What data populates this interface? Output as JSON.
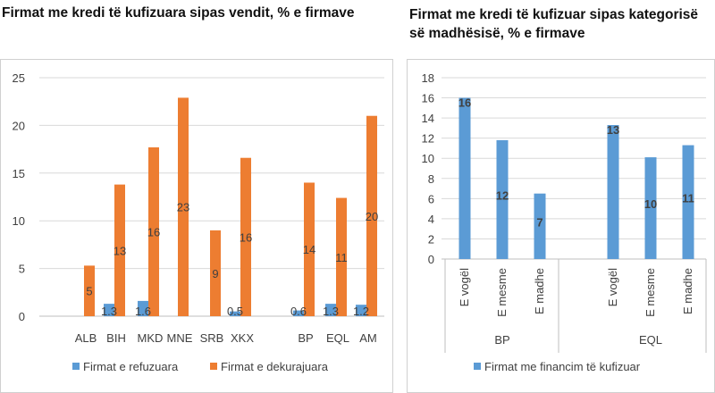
{
  "left_title": "Firmat me kredi të kufizuara sipas vendit, % e firmave",
  "right_title": "Firmat me kredi të kufizuar sipas kategorisë së madhësisë, % e firmave",
  "colors": {
    "blue": "#5b9bd5",
    "orange": "#ed7d31",
    "grid": "#d9d9d9",
    "axis": "#bfbfbf",
    "label": "#404040"
  },
  "chart_data": [
    {
      "type": "bar",
      "title": "Firmat me kredi të kufizuara sipas vendit, % e firmave",
      "categories": [
        "ALB",
        "BIH",
        "MKD",
        "MNE",
        "SRB",
        "XKX",
        "BP",
        "EQL",
        "AM"
      ],
      "series": [
        {
          "name": "Firmat e refuzuara",
          "color": "#5b9bd5",
          "values": [
            0,
            1.3,
            1.6,
            0,
            0,
            0.5,
            0.6,
            1.3,
            1.2
          ],
          "labels": [
            "",
            "1.3",
            "1.6",
            "",
            "",
            "0.5",
            "0.6",
            "1.3",
            "1.2"
          ]
        },
        {
          "name": "Firmat e dekurajuara",
          "color": "#ed7d31",
          "values": [
            5.3,
            13.8,
            17.7,
            22.9,
            9.0,
            16.6,
            14.0,
            12.4,
            21.0
          ],
          "labels": [
            "5",
            "13",
            "16",
            "23",
            "9",
            "16",
            "14",
            "11",
            "20"
          ]
        }
      ],
      "ylim": [
        0,
        25
      ],
      "yticks": [
        0,
        5,
        10,
        15,
        20,
        25
      ],
      "grid": true,
      "legend": "bottom"
    },
    {
      "type": "bar",
      "title": "Firmat me kredi të kufizuar sipas kategorisë së madhësisë, % e firmave",
      "groups": [
        {
          "name": "BP",
          "categories": [
            "E vogël",
            "E mesme",
            "E madhe"
          ],
          "values": [
            16.0,
            11.8,
            6.5
          ],
          "labels": [
            "16",
            "12",
            "7"
          ]
        },
        {
          "name": "EQL",
          "categories": [
            "E vogël",
            "E mesme",
            "E madhe"
          ],
          "values": [
            13.3,
            10.1,
            11.3
          ],
          "labels": [
            "13",
            "10",
            "11"
          ]
        }
      ],
      "series": [
        {
          "name": "Firmat me financim të kufizuar",
          "color": "#5b9bd5"
        }
      ],
      "ylim": [
        0,
        18
      ],
      "yticks": [
        0,
        2,
        4,
        6,
        8,
        10,
        12,
        14,
        16,
        18
      ],
      "grid": true,
      "legend": "bottom"
    }
  ]
}
